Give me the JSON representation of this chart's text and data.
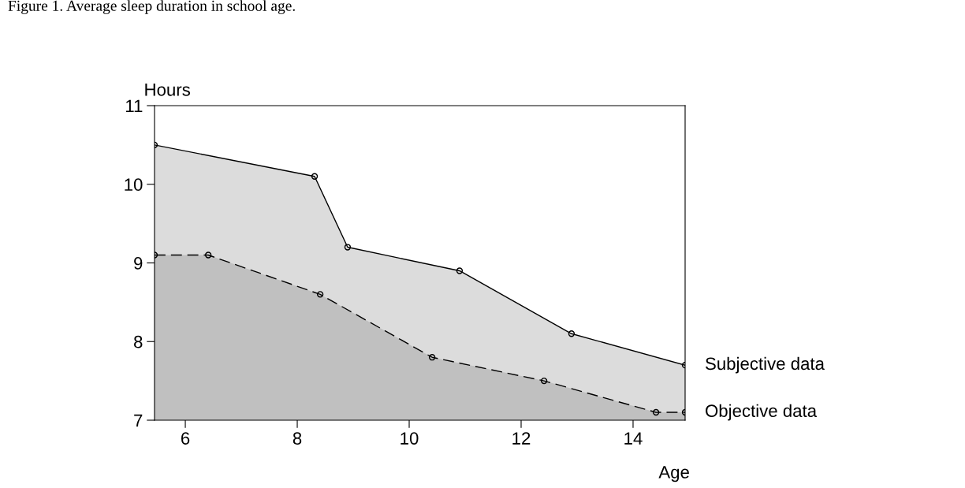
{
  "chart_data": {
    "type": "area",
    "title": "Figure 1. Average sleep duration in school age.",
    "xlabel": "Age",
    "ylabel": "Hours",
    "xlim": [
      5.45,
      14.93
    ],
    "ylim": [
      7,
      11
    ],
    "xticks": [
      6,
      8,
      10,
      12,
      14
    ],
    "yticks": [
      7,
      8,
      9,
      10,
      11
    ],
    "grid": false,
    "legend": false,
    "marker": "circle",
    "series": [
      {
        "name": "Subjective data",
        "color": "#dcdcdc",
        "line_style": "solid",
        "x": [
          5.45,
          8.31,
          8.9,
          10.9,
          12.9,
          14.93
        ],
        "values": [
          10.5,
          10.1,
          9.2,
          8.9,
          8.1,
          7.7
        ]
      },
      {
        "name": "Objective data",
        "color": "#c0c0c0",
        "line_style": "dashed",
        "x": [
          5.45,
          6.41,
          8.41,
          10.41,
          12.41,
          14.41,
          14.93
        ],
        "values": [
          9.1,
          9.1,
          8.6,
          7.8,
          7.5,
          7.1,
          7.1
        ]
      }
    ]
  }
}
